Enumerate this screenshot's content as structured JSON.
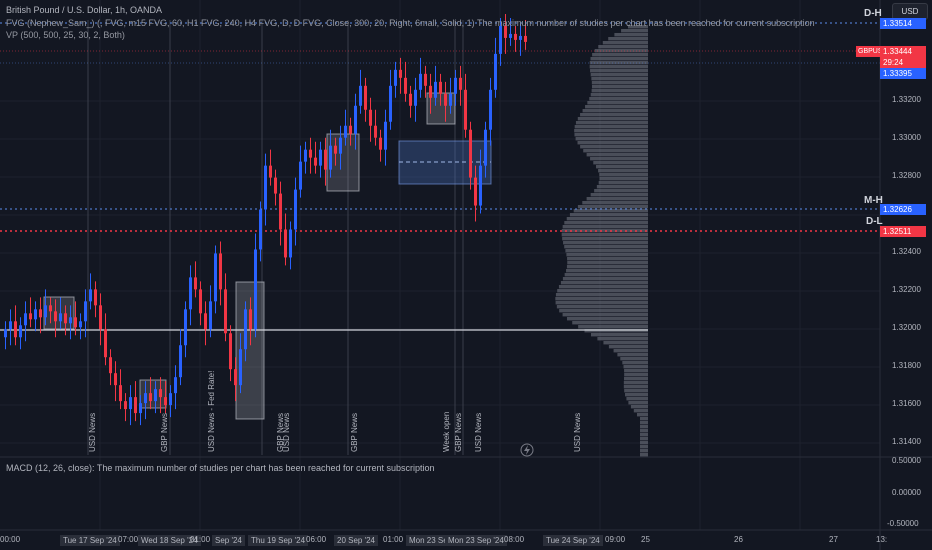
{
  "header": {
    "symbol_line": "British Pound / U.S. Dollar, 1h, OANDA",
    "indicator_fvg": "FVG (Nephew_Sam_) (, FVG, m15 FVG, 60, H1 FVG, 240, H4 FVG, D, D FVG, Close, 300, 20, Right, 6mall, Solid, 1) The maximum number of studies per chart has been reached for current subscription",
    "indicator_vp": "VP (500, 500, 25, 30, 2, Both)",
    "currency_button": "USD"
  },
  "price_axis": {
    "ticks": [
      "1.33200",
      "1.33000",
      "1.32800",
      "1.32400",
      "1.32200",
      "1.32000",
      "1.31800",
      "1.31600",
      "1.31400"
    ],
    "labels": {
      "top_dotted": "1.33514",
      "current_symbol": "GBPUSD",
      "current_price": "1.33444",
      "countdown": "29:24",
      "blue_level": "1.33395",
      "mh_price": "1.32626",
      "dl_price": "1.32511"
    },
    "level_tags": {
      "dh": "D-H",
      "mh": "M-H",
      "dl": "D-L"
    }
  },
  "macd": {
    "legend": "MACD (12, 26, close): The maximum number of studies per chart has been reached for current subscription",
    "ticks": [
      "0.50000",
      "0.00000",
      "-0.50000"
    ]
  },
  "time_axis": {
    "ticks": [
      "00:00",
      "Tue 17 Sep '24",
      "07:00",
      "Wed 18 Sep '24",
      "01:00",
      "Sep '24",
      "Thu 19 Sep '24",
      "06:00",
      "20 Sep '24",
      "01:00",
      "Mon 23 Sep '24",
      "Mon 23 Sep '24",
      "08:00",
      "Tue 24 Sep '24",
      "09:00",
      "25",
      "26",
      "27",
      "13:"
    ]
  },
  "news_markers": [
    {
      "text": "USD News"
    },
    {
      "text": "GBP News"
    },
    {
      "text": "USD News - Fed Rate!"
    },
    {
      "text": "GBP News"
    },
    {
      "text": "USD News"
    },
    {
      "text": "GBP News"
    },
    {
      "text": "Week open"
    },
    {
      "text": "GBP News"
    },
    {
      "text": "USD News"
    },
    {
      "text": "USD News"
    }
  ],
  "colors": {
    "background": "#131722",
    "bull": "#2962ff",
    "bear": "#f23645",
    "dotted_blue": "#5b8def",
    "dotted_red": "#f23645",
    "profile": "#787b86"
  },
  "chart_data": {
    "type": "candlestick",
    "symbol": "GBPUSD",
    "timeframe": "1h",
    "ylim": [
      1.3135,
      1.3365
    ],
    "levels": {
      "D-H": 1.33514,
      "M-H": 1.32626,
      "D-L": 1.32511,
      "current": 1.33444,
      "blue": 1.33395
    },
    "candles_close": [
      1.32,
      1.3204,
      1.3196,
      1.3202,
      1.3208,
      1.3205,
      1.321,
      1.3206,
      1.3212,
      1.3209,
      1.3204,
      1.3208,
      1.3203,
      1.3206,
      1.3201,
      1.3204,
      1.3214,
      1.322,
      1.3212,
      1.32,
      1.3186,
      1.3178,
      1.3172,
      1.3164,
      1.316,
      1.3166,
      1.3158,
      1.3163,
      1.3168,
      1.3164,
      1.317,
      1.3166,
      1.3162,
      1.3168,
      1.3176,
      1.3192,
      1.321,
      1.3226,
      1.322,
      1.3208,
      1.32,
      1.3214,
      1.3238,
      1.322,
      1.3198,
      1.318,
      1.3172,
      1.319,
      1.321,
      1.32,
      1.324,
      1.326,
      1.3282,
      1.3276,
      1.3268,
      1.325,
      1.3236,
      1.325,
      1.327,
      1.3284,
      1.329,
      1.3286,
      1.3282,
      1.329,
      1.328,
      1.3292,
      1.3288,
      1.3296,
      1.3302,
      1.3298,
      1.3312,
      1.3322,
      1.331,
      1.3302,
      1.3296,
      1.329,
      1.3304,
      1.3322,
      1.333,
      1.3326,
      1.3318,
      1.3312,
      1.332,
      1.3328,
      1.3322,
      1.3316,
      1.3324,
      1.3318,
      1.3312,
      1.3318,
      1.3326,
      1.332,
      1.33,
      1.3276,
      1.3262,
      1.3282,
      1.33,
      1.332,
      1.3338,
      1.3352,
      1.3346,
      1.3348,
      1.3345,
      1.3347,
      1.3344
    ]
  }
}
